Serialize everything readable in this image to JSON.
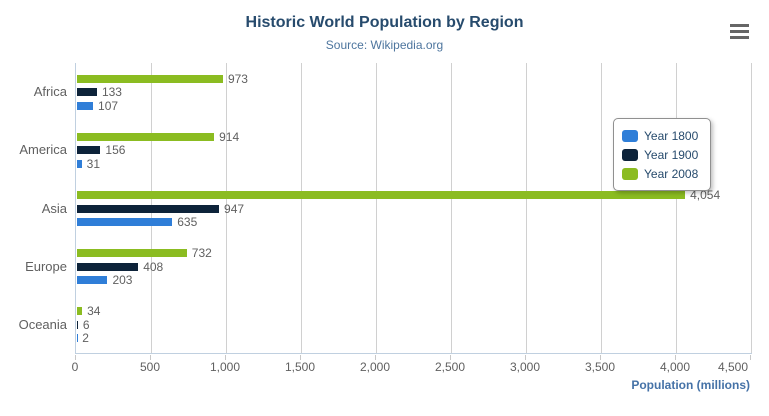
{
  "header": {
    "title": "Historic World Population by Region",
    "subtitle": "Source: Wikipedia.org"
  },
  "axis": {
    "x_title": "Population (millions)"
  },
  "chart_data": {
    "type": "bar",
    "orientation": "horizontal",
    "title": "Historic World Population by Region",
    "subtitle": "Source: Wikipedia.org",
    "xlabel": "Population (millions)",
    "ylabel": "",
    "categories": [
      "Africa",
      "America",
      "Asia",
      "Europe",
      "Oceania"
    ],
    "series": [
      {
        "name": "Year 1800",
        "color": "#2f7ed8",
        "values": [
          107,
          31,
          635,
          203,
          2
        ]
      },
      {
        "name": "Year 1900",
        "color": "#0d233a",
        "values": [
          133,
          156,
          947,
          408,
          6
        ]
      },
      {
        "name": "Year 2008",
        "color": "#8bbc21",
        "values": [
          973,
          914,
          4054,
          732,
          34
        ]
      }
    ],
    "bar_order_top_to_bottom": [
      "Year 2008",
      "Year 1900",
      "Year 1800"
    ],
    "xlim": [
      0,
      4500
    ],
    "xticks": [
      0,
      500,
      1000,
      1500,
      2000,
      2500,
      3000,
      3500,
      4000,
      4500
    ],
    "grid": true,
    "data_labels": true,
    "legend_position": "right-inside"
  },
  "legend": {
    "items": [
      {
        "label": "Year 1800",
        "color": "#2f7ed8"
      },
      {
        "label": "Year 1900",
        "color": "#0d233a"
      },
      {
        "label": "Year 2008",
        "color": "#8bbc21"
      }
    ]
  },
  "colors": {
    "title": "#274b6d",
    "subtitle": "#4d759e",
    "axis_line": "#c0d0e0",
    "gridline": "#d0d0d0",
    "tick_label": "#606060",
    "data_label": "#606060",
    "x_axis_title": "#4572a7",
    "legend_border": "#909090",
    "menu_icon": "#666666",
    "background": "#ffffff"
  },
  "icons": {
    "menu": "hamburger-icon"
  }
}
